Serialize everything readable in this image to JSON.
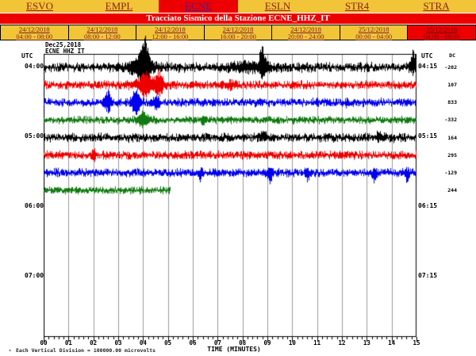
{
  "nav": {
    "stations": [
      {
        "label": "ESVO",
        "active": false
      },
      {
        "label": "EMPL",
        "active": false
      },
      {
        "label": "ECNE",
        "active": true
      },
      {
        "label": "ESLN",
        "active": false
      },
      {
        "label": "STR4",
        "active": false
      },
      {
        "label": "STRA",
        "active": false
      }
    ]
  },
  "title_bar": {
    "text": "Tracciato Sismico della Stazione ECNE_HHZ_IT"
  },
  "date_tabs": [
    {
      "date": "24/12/2018",
      "time": "04:00 - 08:00",
      "active": false
    },
    {
      "date": "24/12/2018",
      "time": "08:00 - 12:00",
      "active": false
    },
    {
      "date": "24/12/2018",
      "time": "12:00 - 16:00",
      "active": false
    },
    {
      "date": "24/12/2018",
      "time": "16:00 - 20:00",
      "active": false
    },
    {
      "date": "24/12/2018",
      "time": "20:00 - 24:00",
      "active": false
    },
    {
      "date": "25/12/2018",
      "time": "00:00 - 04:00",
      "active": false
    },
    {
      "date": "25/12/2018",
      "time": "04:00 - 08:00",
      "active": true
    }
  ],
  "plot": {
    "header_date": "Dec25,2018",
    "header_station": "ECNE HHZ IT",
    "utc_label": "UTC",
    "dc_label": "DC",
    "left_times": [
      "04:00",
      "05:00",
      "06:00",
      "07:00"
    ],
    "right_times": [
      "04:15",
      "05:15",
      "06:15",
      "07:15"
    ],
    "dc_values": [
      "-202",
      "107",
      "833",
      "-332",
      "164",
      "295",
      "-129",
      "244"
    ],
    "x_ticks": [
      "00",
      "01",
      "02",
      "03",
      "04",
      "05",
      "06",
      "07",
      "08",
      "09",
      "10",
      "11",
      "12",
      "13",
      "14",
      "15"
    ],
    "xlabel": "TIME (MINUTES)",
    "footer_marker": "▴",
    "footer": "Each Vertical Division = 100000.00 microvolts"
  },
  "chart_data": {
    "type": "line",
    "title": "Helicorder drum plot, station ECNE HHZ IT, Dec 25 2018, 04:00-08:00 UTC window (15 minutes per line)",
    "xlabel": "TIME (MINUTES)",
    "x_range_minutes": [
      0,
      15
    ],
    "minutes_per_line": 15,
    "grid": "vertical gridlines every 1 minute",
    "legend_position": "none",
    "colors_cycle": [
      "#000000",
      "#EE0000",
      "#0000EE",
      "#117A11"
    ],
    "traces": [
      {
        "start_utc": "04:00",
        "end_label": "04:15",
        "color": "#000000",
        "dc_offset": -202,
        "end_minute": 15,
        "base_amp": 6.5,
        "spikes": [
          {
            "m": 4.05,
            "a": 38,
            "w": 4,
            "dir": "both"
          },
          {
            "m": 3.9,
            "a": 9,
            "w": 12,
            "dir": "both"
          },
          {
            "m": 8.8,
            "a": 24,
            "w": 3,
            "dir": "up"
          },
          {
            "m": 8.3,
            "a": 4,
            "w": 22,
            "dir": "both"
          },
          {
            "m": 14.85,
            "a": 20,
            "w": 2.5,
            "dir": "up"
          }
        ]
      },
      {
        "start_utc": "04:15",
        "end_label": "04:30",
        "color": "#EE0000",
        "dc_offset": 107,
        "end_minute": 15,
        "base_amp": 5.5,
        "spikes": [
          {
            "m": 4.1,
            "a": 12,
            "w": 4,
            "dir": "both"
          },
          {
            "m": 4.65,
            "a": 14,
            "w": 3,
            "dir": "both"
          },
          {
            "m": 4.2,
            "a": 7,
            "w": 14,
            "dir": "both"
          },
          {
            "m": 7.5,
            "a": 5,
            "w": 3,
            "dir": "both"
          }
        ]
      },
      {
        "start_utc": "04:30",
        "end_label": "04:45",
        "color": "#0000EE",
        "dc_offset": 833,
        "end_minute": 15,
        "base_amp": 5.5,
        "spikes": [
          {
            "m": 2.55,
            "a": 16,
            "w": 3,
            "dir": "both"
          },
          {
            "m": 3.7,
            "a": 24,
            "w": 3.5,
            "dir": "both"
          },
          {
            "m": 4.5,
            "a": 8,
            "w": 3,
            "dir": "both"
          },
          {
            "m": 12.2,
            "a": 6,
            "w": 2,
            "dir": "down"
          }
        ]
      },
      {
        "start_utc": "04:45",
        "end_label": "05:00",
        "color": "#117A11",
        "dc_offset": -332,
        "end_minute": 15,
        "base_amp": 5,
        "spikes": [
          {
            "m": 4.0,
            "a": 9,
            "w": 5,
            "dir": "both"
          },
          {
            "m": 6.4,
            "a": 5,
            "w": 2,
            "dir": "both"
          }
        ]
      },
      {
        "start_utc": "05:00",
        "end_label": "05:15",
        "color": "#000000",
        "dc_offset": 164,
        "end_minute": 15,
        "base_amp": 6,
        "spikes": [
          {
            "m": 8.85,
            "a": 8,
            "w": 3,
            "dir": "up"
          },
          {
            "m": 13.5,
            "a": 6,
            "w": 3,
            "dir": "up"
          }
        ]
      },
      {
        "start_utc": "05:15",
        "end_label": "05:30",
        "color": "#EE0000",
        "dc_offset": 295,
        "end_minute": 15,
        "base_amp": 5.5,
        "spikes": [
          {
            "m": 2.0,
            "a": 5,
            "w": 2,
            "dir": "both"
          }
        ]
      },
      {
        "start_utc": "05:30",
        "end_label": "05:45",
        "color": "#0000EE",
        "dc_offset": -129,
        "end_minute": 15,
        "base_amp": 5.5,
        "spikes": [
          {
            "m": 6.3,
            "a": 10,
            "w": 2,
            "dir": "down"
          },
          {
            "m": 9.1,
            "a": 12,
            "w": 2,
            "dir": "down"
          },
          {
            "m": 10.6,
            "a": 10,
            "w": 2,
            "dir": "down"
          },
          {
            "m": 13.3,
            "a": 12,
            "w": 2,
            "dir": "down"
          },
          {
            "m": 14.6,
            "a": 9,
            "w": 2,
            "dir": "down"
          }
        ]
      },
      {
        "start_utc": "05:45",
        "end_label": "06:00",
        "color": "#117A11",
        "dc_offset": 244,
        "end_minute": 5.1,
        "base_amp": 5,
        "spikes": []
      }
    ],
    "note": "traces are continuous seismic background noise; values above are per-line DC offsets shown in the DC column"
  }
}
